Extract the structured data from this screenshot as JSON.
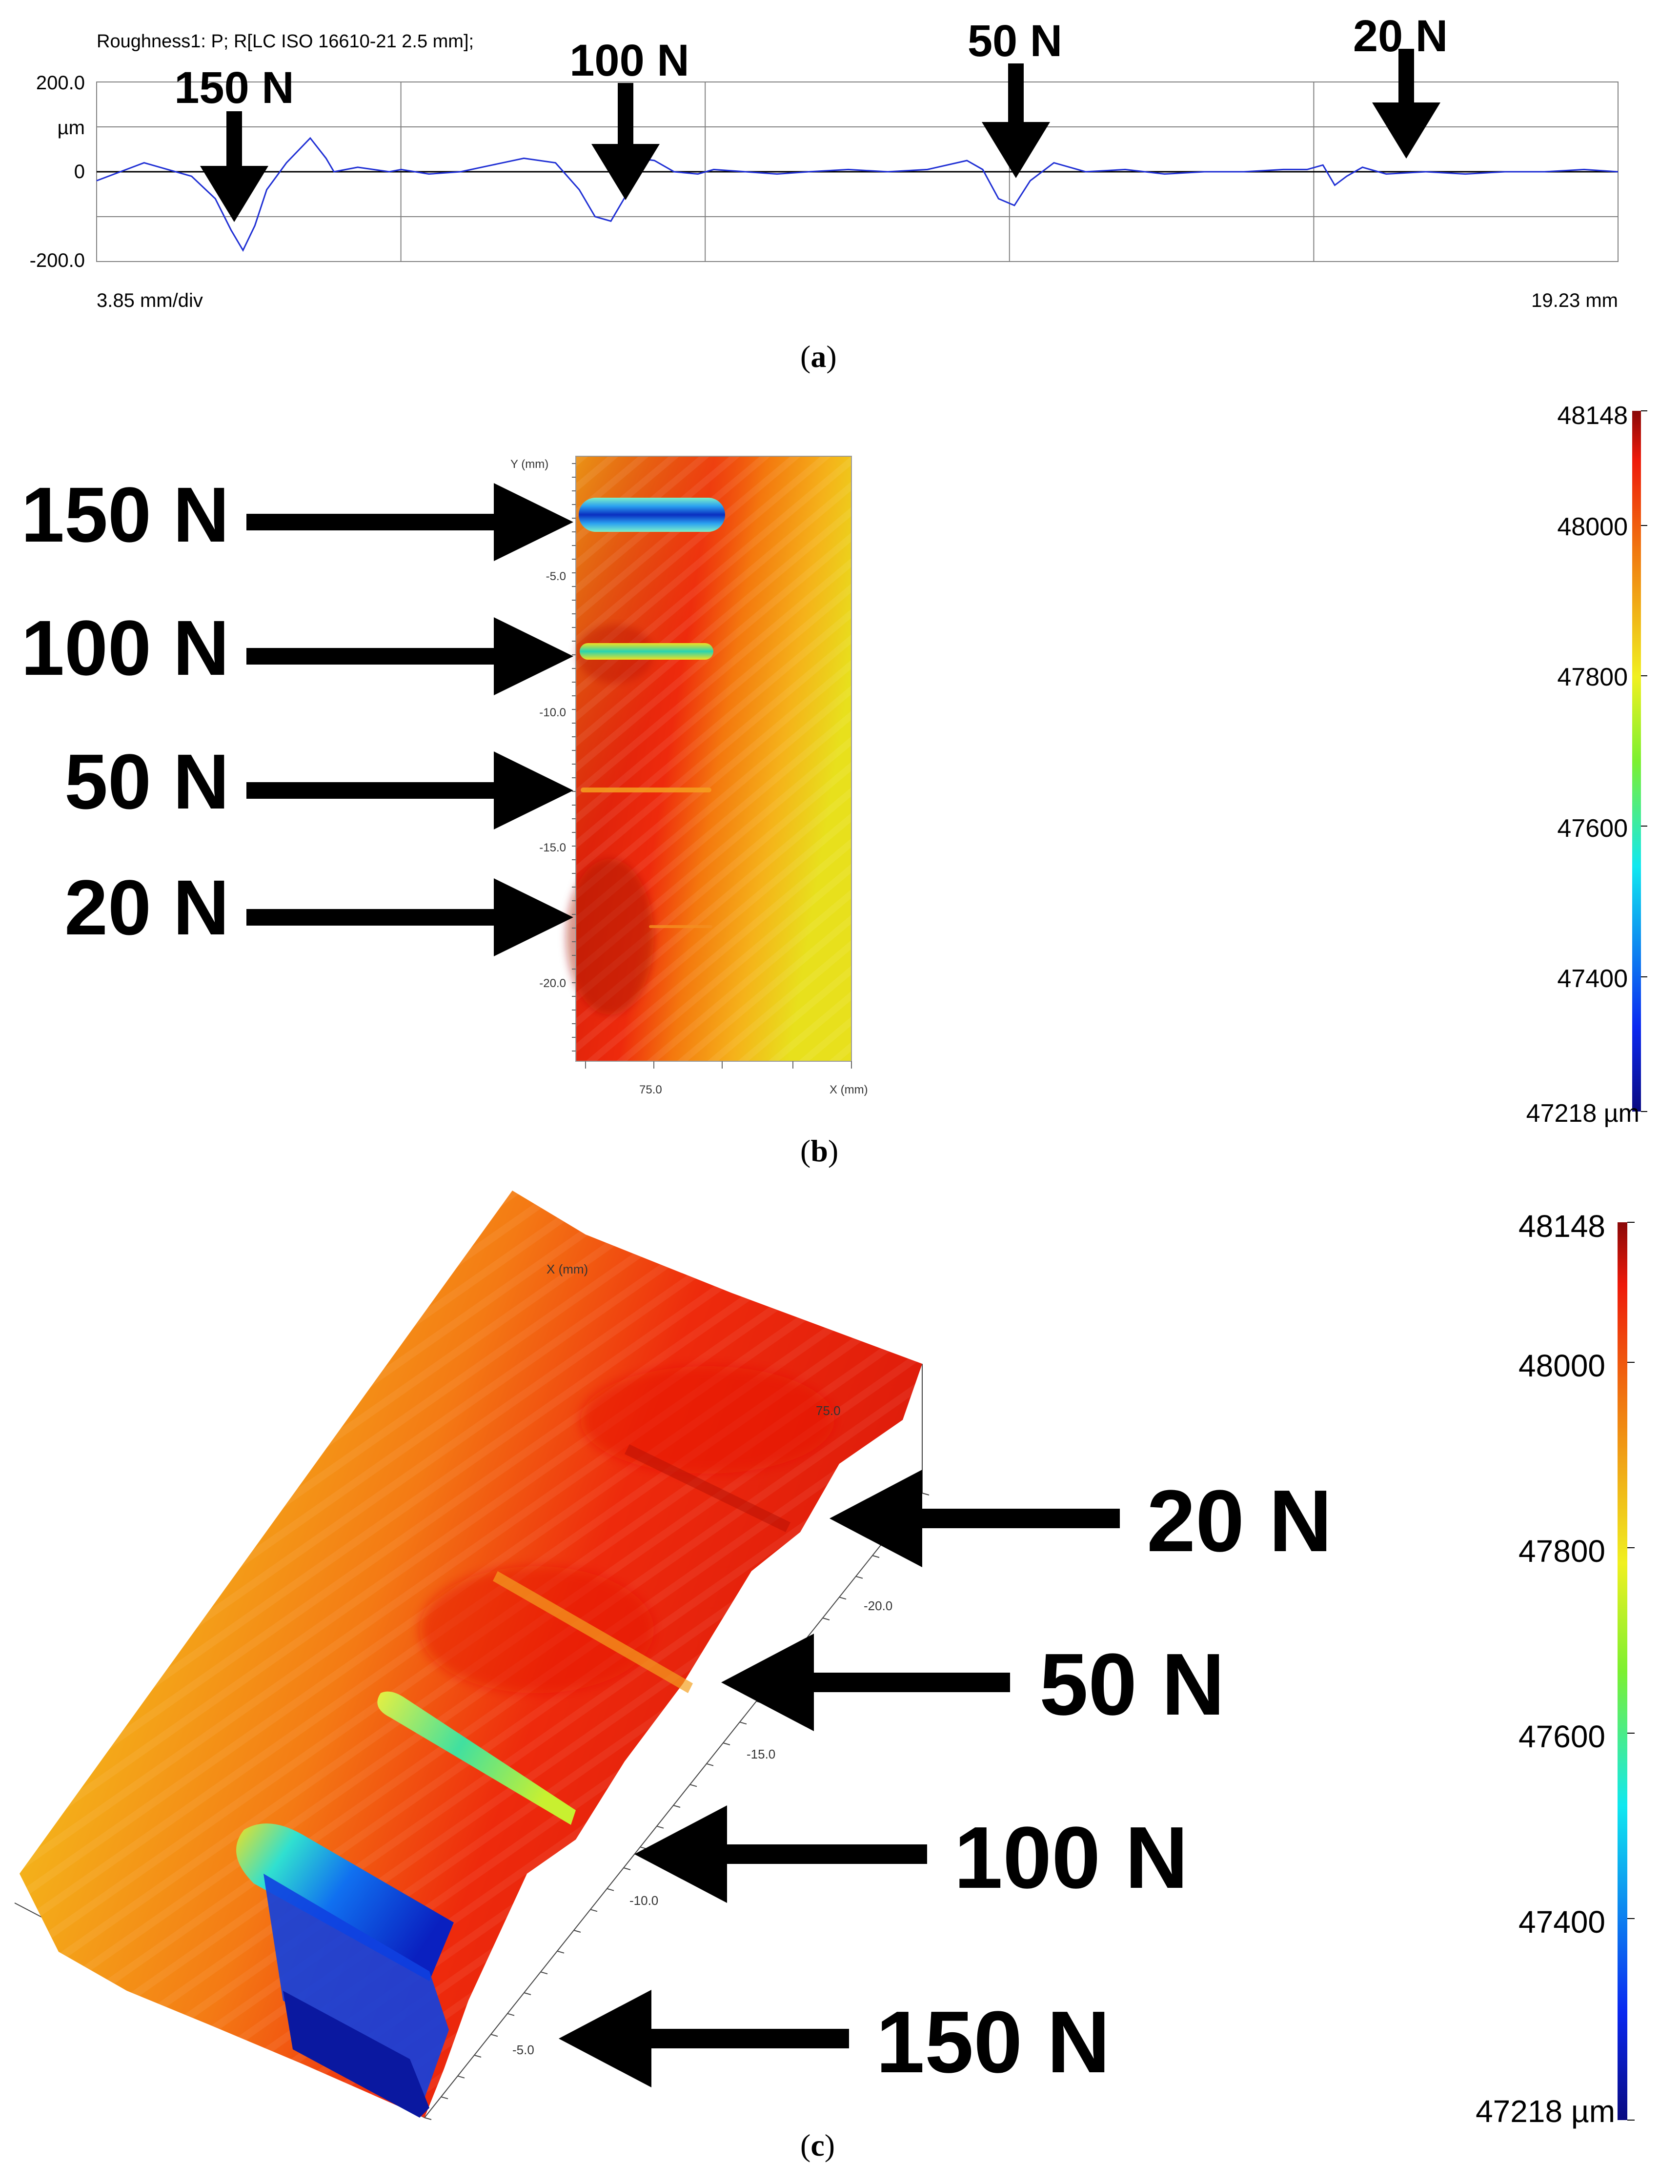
{
  "colors": {
    "profile_line": "#1f2fd4",
    "grid": "#808080",
    "arrow": "#000000",
    "surface_high": "#e8140a",
    "surface_low": "#0a1ca8"
  },
  "panel_a": {
    "caption_letter": "a",
    "header": "Roughness1: P; R[LC ISO 16610-21 2.5 mm];",
    "y_ticks": [
      "200.0",
      "µm",
      "0",
      "-200.0"
    ],
    "x_scale_label": "3.85 mm/div",
    "x_end_label": "19.23 mm",
    "load_labels": [
      "150 N",
      "100 N",
      "50 N",
      "20 N"
    ],
    "chart_data": {
      "type": "line",
      "title": "Roughness1: P; R[LC ISO 16610-21 2.5 mm];",
      "xlabel": "",
      "ylabel": "µm",
      "xlim": [
        0,
        19.23
      ],
      "ylim": [
        -200,
        200
      ],
      "grid": true,
      "series": [
        {
          "x": [
            0,
            0.3,
            0.6,
            0.9,
            1.2,
            1.5,
            1.7,
            1.85,
            2.0,
            2.15,
            2.4,
            2.7,
            2.9,
            3.0,
            3.3,
            3.7,
            3.85,
            4.2,
            4.6,
            5.0,
            5.4,
            5.8,
            6.1,
            6.3,
            6.5,
            6.7,
            6.85,
            7.05,
            7.3,
            7.6,
            7.8,
            8.2,
            8.6,
            9.0,
            9.5,
            10.0,
            10.5,
            11.0,
            11.2,
            11.4,
            11.6,
            11.8,
            12.1,
            12.5,
            13.0,
            13.5,
            14.0,
            14.5,
            15.0,
            15.3,
            15.5,
            15.65,
            15.8,
            16.0,
            16.3,
            16.8,
            17.3,
            17.8,
            18.3,
            18.8,
            19.23
          ],
          "y": [
            -20,
            0,
            20,
            5,
            -10,
            -60,
            -130,
            -175,
            -120,
            -40,
            20,
            75,
            30,
            0,
            10,
            0,
            5,
            -5,
            0,
            15,
            30,
            20,
            -40,
            -100,
            -110,
            -50,
            30,
            25,
            0,
            -5,
            5,
            0,
            -5,
            0,
            5,
            0,
            5,
            25,
            5,
            -60,
            -75,
            -20,
            20,
            0,
            5,
            -5,
            0,
            0,
            5,
            5,
            15,
            -30,
            -10,
            10,
            -5,
            0,
            -5,
            0,
            0,
            5,
            0
          ]
        }
      ]
    }
  },
  "panel_b": {
    "caption_letter": "b",
    "load_labels": [
      "150 N",
      "100 N",
      "50 N",
      "20 N"
    ],
    "y_axis_label": "Y (mm)",
    "x_axis_label": "X (mm)",
    "y_ticks": [
      "-5.0",
      "-10.0",
      "-15.0",
      "-20.0"
    ],
    "x_ticks": [
      "75.0"
    ],
    "colorbar_ticks": [
      "48148",
      "48000",
      "47800",
      "47600",
      "47400",
      "47218 µm"
    ]
  },
  "panel_c": {
    "caption_letter": "c",
    "load_labels": [
      "20 N",
      "50 N",
      "100 N",
      "150 N"
    ],
    "x_axis_label": "X (mm)",
    "x_ticks": [
      "75.0"
    ],
    "y_ticks": [
      "-20.0",
      "-15.0",
      "-10.0",
      "-5.0"
    ],
    "colorbar_ticks": [
      "48148",
      "48000",
      "47800",
      "47600",
      "47400",
      "47218 µm"
    ]
  }
}
